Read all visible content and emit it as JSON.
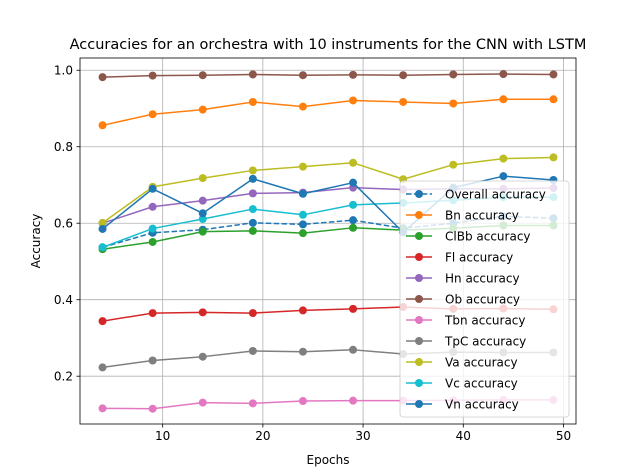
{
  "chart_data": {
    "type": "line",
    "title": "Accuracies for an orchestra with 10 instruments for the CNN with LSTM",
    "xlabel": "Epochs",
    "ylabel": "Accuracy",
    "xlim": [
      1.75,
      51.25
    ],
    "ylim": [
      0.075,
      1.032
    ],
    "xticks": [
      10,
      20,
      30,
      40,
      50
    ],
    "yticks": [
      0.2,
      0.4,
      0.6,
      0.8,
      1.0
    ],
    "ytick_labels": [
      "0.2",
      "0.4",
      "0.6",
      "0.8",
      "1.0"
    ],
    "grid": true,
    "legend_position": "right",
    "x": [
      4,
      9,
      14,
      19,
      24,
      29,
      34,
      39,
      44,
      49
    ],
    "series": [
      {
        "name": "Overall accuracy",
        "color": "#1f77b4",
        "dashed": true,
        "values": [
          0.537,
          0.575,
          0.583,
          0.601,
          0.597,
          0.608,
          0.587,
          0.6,
          0.618,
          0.613
        ]
      },
      {
        "name": "Bn accuracy",
        "color": "#ff7f0e",
        "values": [
          0.856,
          0.885,
          0.897,
          0.917,
          0.905,
          0.921,
          0.917,
          0.913,
          0.924,
          0.924
        ]
      },
      {
        "name": "ClBb accuracy",
        "color": "#2ca02c",
        "values": [
          0.532,
          0.551,
          0.578,
          0.58,
          0.574,
          0.588,
          0.582,
          0.587,
          0.594,
          0.594
        ]
      },
      {
        "name": "Fl accuracy",
        "color": "#d62728",
        "values": [
          0.344,
          0.365,
          0.367,
          0.365,
          0.372,
          0.376,
          0.381,
          0.376,
          0.377,
          0.375
        ]
      },
      {
        "name": "Hn accuracy",
        "color": "#9467bd",
        "values": [
          0.6,
          0.643,
          0.659,
          0.678,
          0.68,
          0.693,
          0.688,
          0.69,
          0.69,
          0.692
        ]
      },
      {
        "name": "Ob accuracy",
        "color": "#8c564b",
        "values": [
          0.982,
          0.986,
          0.987,
          0.989,
          0.987,
          0.988,
          0.987,
          0.989,
          0.99,
          0.989
        ]
      },
      {
        "name": "Tbn accuracy",
        "color": "#e377c2",
        "values": [
          0.116,
          0.115,
          0.131,
          0.129,
          0.135,
          0.136,
          0.136,
          0.137,
          0.138,
          0.138
        ]
      },
      {
        "name": "TpC accuracy",
        "color": "#7f7f7f",
        "values": [
          0.223,
          0.241,
          0.251,
          0.266,
          0.264,
          0.269,
          0.258,
          0.263,
          0.262,
          0.262
        ]
      },
      {
        "name": "Va accuracy",
        "color": "#bcbd22",
        "values": [
          0.601,
          0.695,
          0.718,
          0.738,
          0.748,
          0.758,
          0.715,
          0.753,
          0.769,
          0.772
        ]
      },
      {
        "name": "Vc accuracy",
        "color": "#17becf",
        "values": [
          0.537,
          0.586,
          0.611,
          0.637,
          0.622,
          0.648,
          0.653,
          0.66,
          0.668,
          0.668
        ]
      },
      {
        "name": "Vn accuracy",
        "color": "#1f77b4",
        "values": [
          0.585,
          0.69,
          0.626,
          0.716,
          0.677,
          0.706,
          0.576,
          0.693,
          0.723,
          0.713
        ]
      }
    ]
  }
}
